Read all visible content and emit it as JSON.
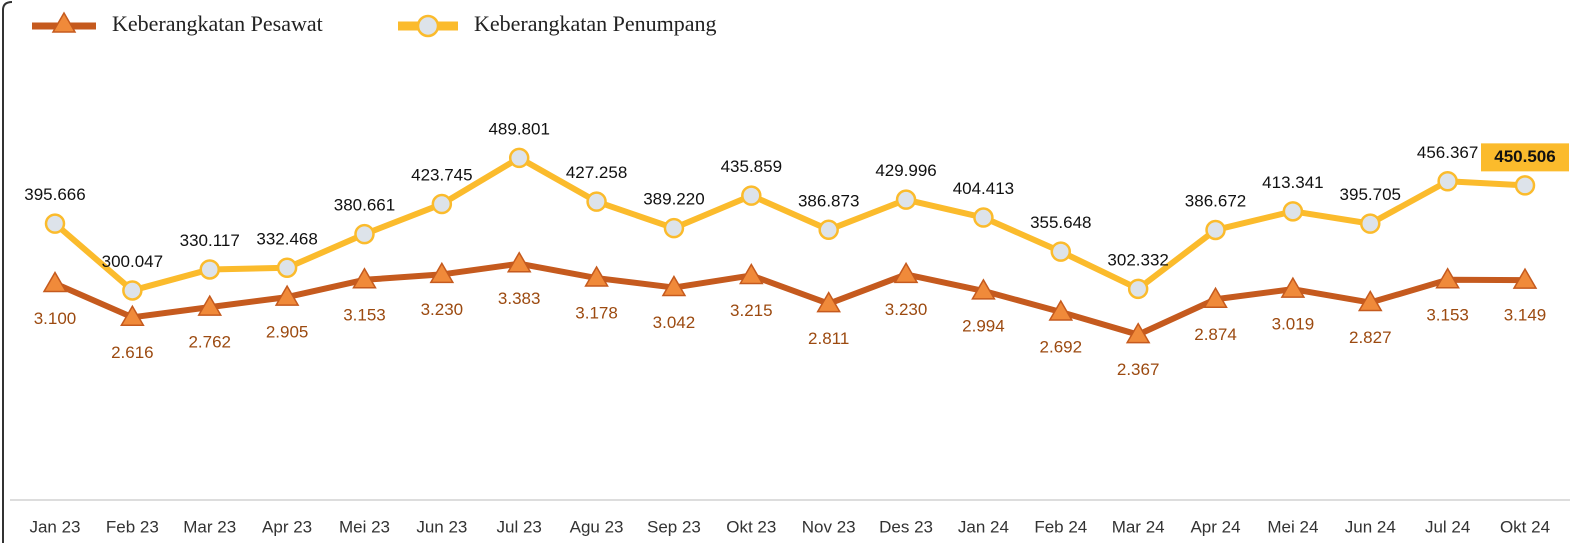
{
  "chart_data": {
    "type": "line",
    "categories": [
      "Jan 23",
      "Feb 23",
      "Mar 23",
      "Apr 23",
      "Mei 23",
      "Jun 23",
      "Jul 23",
      "Agu 23",
      "Sep 23",
      "Okt 23",
      "Nov 23",
      "Des 23",
      "Jan 24",
      "Feb 24",
      "Mar 24",
      "Apr 24",
      "Mei 24",
      "Jun 24",
      "Jul 24",
      "Okt 24"
    ],
    "series": [
      {
        "name": "Keberangkatan Pesawat",
        "color": "#c55a1e",
        "marker_color": "#f08a3a",
        "label_color": "#9c4a10",
        "values": [
          3100,
          2616,
          2762,
          2905,
          3153,
          3230,
          3383,
          3178,
          3042,
          3215,
          2811,
          3230,
          2994,
          2692,
          2367,
          2874,
          3019,
          2827,
          3153,
          3149
        ],
        "value_labels": [
          "3.100",
          "2.616",
          "2.762",
          "2.905",
          "3.153",
          "3.230",
          "3.383",
          "3.178",
          "3.042",
          "3.215",
          "2.811",
          "3.230",
          "2.994",
          "2.692",
          "2.367",
          "2.874",
          "3.019",
          "2.827",
          "3.153",
          "3.149"
        ]
      },
      {
        "name": "Keberangkatan Penumpang",
        "color": "#fbbb2c",
        "marker_color": "#dde3ea",
        "label_color": "#111111",
        "axis": "y2",
        "values": [
          395666,
          300047,
          330117,
          332468,
          380661,
          423745,
          489801,
          427258,
          389220,
          435859,
          386873,
          429996,
          404413,
          355648,
          302332,
          386672,
          413341,
          395705,
          456367,
          450506
        ],
        "value_labels": [
          "395.666",
          "300.047",
          "330.117",
          "332.468",
          "380.661",
          "423.745",
          "489.801",
          "427.258",
          "389.220",
          "435.859",
          "386.873",
          "429.996",
          "404.413",
          "355.648",
          "302.332",
          "386.672",
          "413.341",
          "395.705",
          "456.367",
          "450.506"
        ]
      }
    ],
    "ylim": [
      0,
      6300
    ],
    "y2lim": [
      0,
      630000
    ]
  }
}
